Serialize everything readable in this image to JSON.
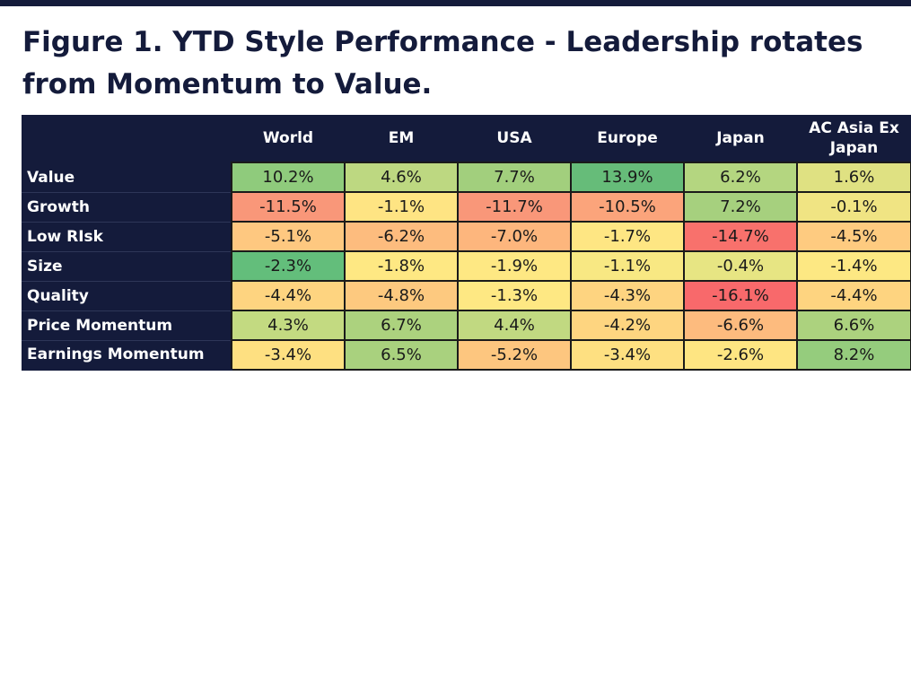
{
  "title": "Figure 1. YTD Style Performance - Leadership rotates from Momentum to Value.",
  "chart_data": {
    "type": "table",
    "title": "Figure 1. YTD Style Performance - Leadership rotates from Momentum to Value.",
    "columns": [
      "World",
      "EM",
      "USA",
      "Europe",
      "Japan",
      "AC Asia Ex Japan"
    ],
    "rows": [
      {
        "label": "Value",
        "values": [
          "10.2%",
          "4.6%",
          "7.7%",
          "13.9%",
          "6.2%",
          "1.6%"
        ],
        "colors": [
          "#8fcb7c",
          "#bdd881",
          "#a2cf7d",
          "#66bc79",
          "#b4d680",
          "#dfe182"
        ]
      },
      {
        "label": "Growth",
        "values": [
          "-11.5%",
          "-1.1%",
          "-11.7%",
          "-10.5%",
          "7.2%",
          "-0.1%"
        ],
        "colors": [
          "#f99779",
          "#fee483",
          "#f99779",
          "#fba47b",
          "#a6d07e",
          "#f0e483"
        ]
      },
      {
        "label": "Low RIsk",
        "values": [
          "-5.1%",
          "-6.2%",
          "-7.0%",
          "-1.7%",
          "-14.7%",
          "-4.5%"
        ],
        "colors": [
          "#fec880",
          "#fdbc7e",
          "#fdb67d",
          "#fee683",
          "#f8716c",
          "#fecb80"
        ]
      },
      {
        "label": "Size",
        "values": [
          "-2.3%",
          "-1.8%",
          "-1.9%",
          "-1.1%",
          "-0.4%",
          "-1.4%"
        ],
        "colors": [
          "#63be7b",
          "#fee883",
          "#fee883",
          "#f8e883",
          "#e7e583",
          "#fde883"
        ]
      },
      {
        "label": "Quality",
        "values": [
          "-4.4%",
          "-4.8%",
          "-1.3%",
          "-4.3%",
          "-16.1%",
          "-4.4%"
        ],
        "colors": [
          "#fed480",
          "#fdc97f",
          "#fee883",
          "#fed480",
          "#f8696b",
          "#fed480"
        ]
      },
      {
        "label": "Price Momentum",
        "values": [
          "4.3%",
          "6.7%",
          "4.4%",
          "-4.2%",
          "-6.6%",
          "6.6%"
        ],
        "colors": [
          "#c3da81",
          "#acd27e",
          "#c1d981",
          "#fed580",
          "#fdbb7e",
          "#acd27e"
        ]
      },
      {
        "label": "Earnings Momentum",
        "values": [
          "-3.4%",
          "6.5%",
          "-5.2%",
          "-3.4%",
          "-2.6%",
          "8.2%"
        ],
        "colors": [
          "#fee081",
          "#a9d17e",
          "#fdc67f",
          "#fee081",
          "#fee582",
          "#95cc7d"
        ]
      }
    ]
  }
}
